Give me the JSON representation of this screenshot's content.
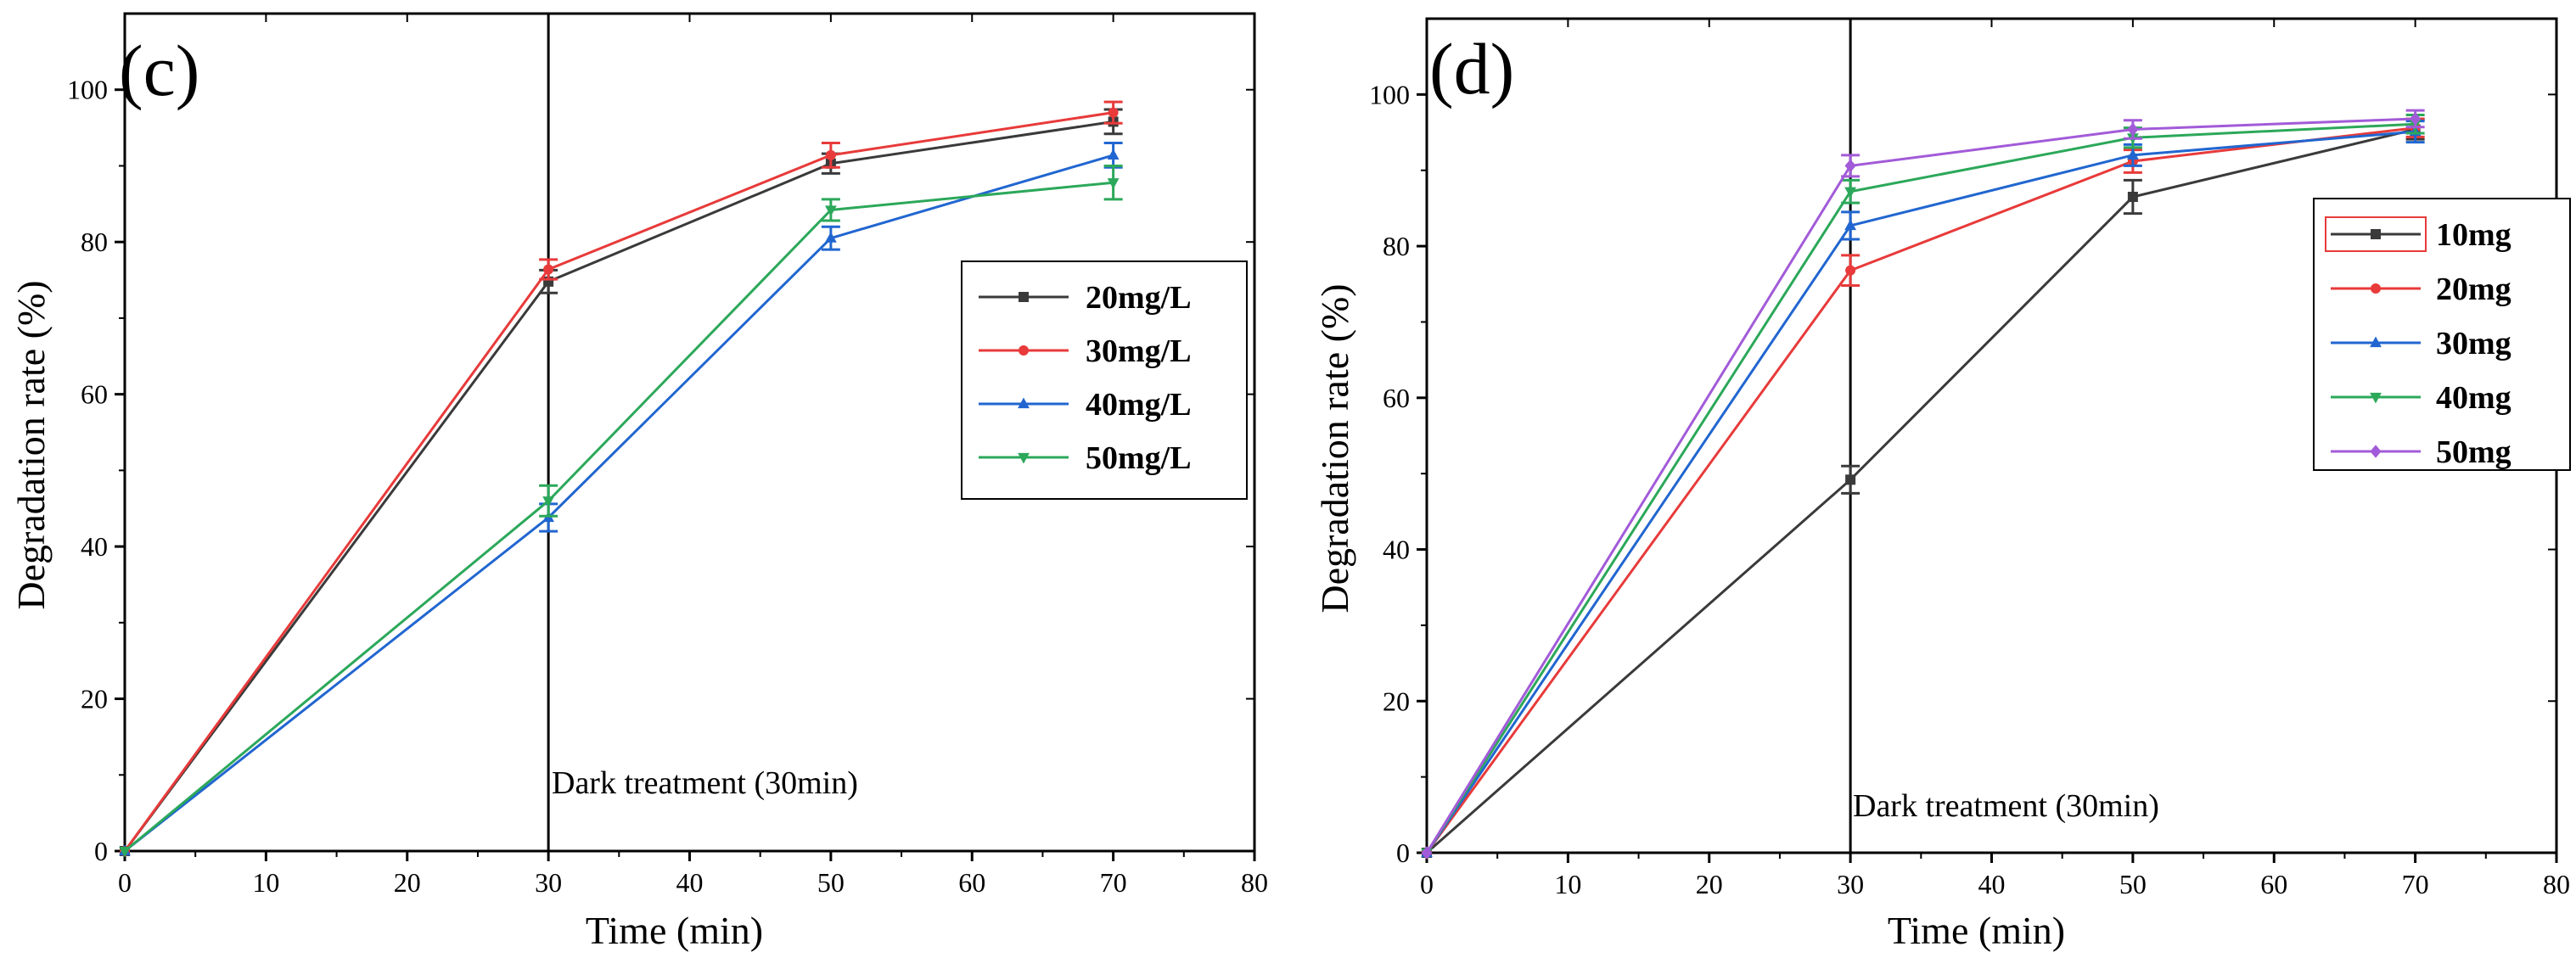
{
  "chart_data": [
    {
      "type": "line",
      "panel_label": "(c)",
      "xlabel": "Time (min)",
      "ylabel": "Degradation rate (%)",
      "xlim": [
        0,
        80
      ],
      "ylim": [
        0,
        110
      ],
      "x_ticks": [
        0,
        10,
        20,
        30,
        40,
        50,
        60,
        70,
        80
      ],
      "y_ticks": [
        0,
        20,
        40,
        60,
        80,
        100
      ],
      "annotation": "Dark treatment (30min)",
      "vline_x": 30,
      "legend_position": "middle-right",
      "x": [
        0,
        30,
        50,
        70
      ],
      "series": [
        {
          "name": "20mg/L",
          "color": "#3a3a3a",
          "marker": "square",
          "values": [
            0,
            74.8,
            90.3,
            95.8
          ],
          "errors": [
            0,
            1.5,
            1.3,
            1.6
          ]
        },
        {
          "name": "30mg/L",
          "color": "#e83a3a",
          "marker": "circle",
          "values": [
            0,
            76.4,
            91.4,
            97.0
          ],
          "errors": [
            0,
            1.3,
            1.6,
            1.4
          ]
        },
        {
          "name": "40mg/L",
          "color": "#2166d0",
          "marker": "triangle-up",
          "values": [
            0,
            43.8,
            80.5,
            91.4
          ],
          "errors": [
            0,
            1.8,
            1.5,
            1.6
          ]
        },
        {
          "name": "50mg/L",
          "color": "#2ca85a",
          "marker": "triangle-down",
          "values": [
            0,
            46.0,
            84.2,
            87.8
          ],
          "errors": [
            0,
            2.0,
            1.4,
            2.2
          ]
        }
      ]
    },
    {
      "type": "line",
      "panel_label": "(d)",
      "xlabel": "Time (min)",
      "ylabel": "Degradation rate (%)",
      "xlim": [
        0,
        80
      ],
      "ylim": [
        0,
        110
      ],
      "x_ticks": [
        0,
        10,
        20,
        30,
        40,
        50,
        60,
        70,
        80
      ],
      "y_ticks": [
        0,
        20,
        40,
        60,
        80,
        100
      ],
      "annotation": "Dark treatment (30min)",
      "vline_x": 30,
      "legend_position": "top-right",
      "x": [
        0,
        30,
        50,
        70
      ],
      "series": [
        {
          "name": "10mg",
          "color": "#3a3a3a",
          "marker": "square",
          "values": [
            0,
            49.2,
            86.5,
            95.4
          ],
          "errors": [
            0,
            1.8,
            2.2,
            1.3
          ]
        },
        {
          "name": "20mg",
          "color": "#e83a3a",
          "marker": "circle",
          "values": [
            0,
            76.8,
            91.2,
            95.6
          ],
          "errors": [
            0,
            2.0,
            1.5,
            1.2
          ]
        },
        {
          "name": "30mg",
          "color": "#2166d0",
          "marker": "triangle-up",
          "values": [
            0,
            82.7,
            92.0,
            95.1
          ],
          "errors": [
            0,
            1.8,
            1.4,
            1.4
          ]
        },
        {
          "name": "40mg",
          "color": "#2ca85a",
          "marker": "triangle-down",
          "values": [
            0,
            87.2,
            94.3,
            96.1
          ],
          "errors": [
            0,
            1.5,
            1.3,
            1.2
          ]
        },
        {
          "name": "50mg",
          "color": "#a25bd8",
          "marker": "diamond",
          "values": [
            0,
            90.6,
            95.4,
            96.8
          ],
          "errors": [
            0,
            1.4,
            1.2,
            1.1
          ]
        }
      ]
    }
  ]
}
